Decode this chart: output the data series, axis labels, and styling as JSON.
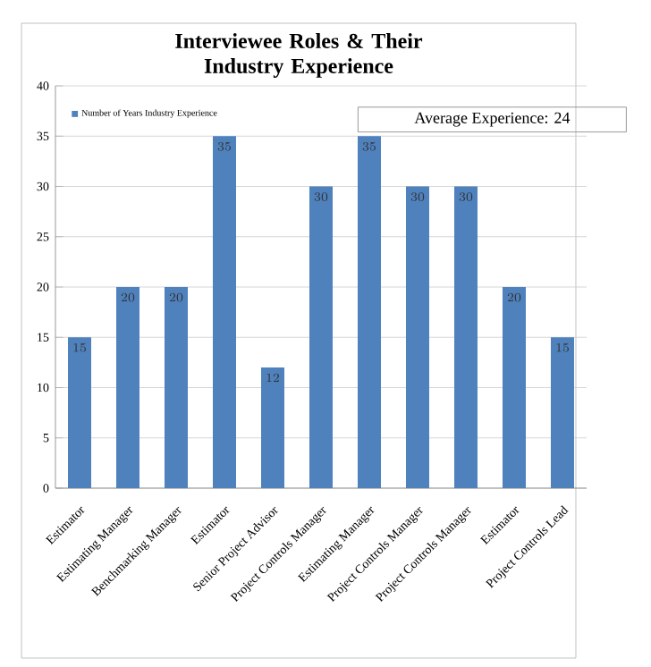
{
  "chart_data": {
    "type": "bar",
    "title": "Interviewee Roles & Their Industry Experience",
    "categories": [
      "Estimator",
      "Estimating Manager",
      "Benchmarking Manager",
      "Estimator",
      "Senior Project Advisor",
      "Project Controls Manager",
      "Estimating Manager",
      "Project Controls Manager",
      "Project Controls Manager",
      "Estimator",
      "Project Controls Lead"
    ],
    "series": [
      {
        "name": "Number of Years Industry Experience",
        "color": "#4f81bd",
        "values": [
          15,
          20,
          20,
          35,
          12,
          30,
          35,
          30,
          30,
          20,
          15
        ]
      }
    ],
    "ylim": [
      0,
      40
    ],
    "yticks": [
      0,
      5,
      10,
      15,
      20,
      25,
      30,
      35,
      40
    ],
    "grid": "y",
    "legend": "top left",
    "data_labels": true,
    "annotations": [
      "Average Experience:  24"
    ]
  }
}
